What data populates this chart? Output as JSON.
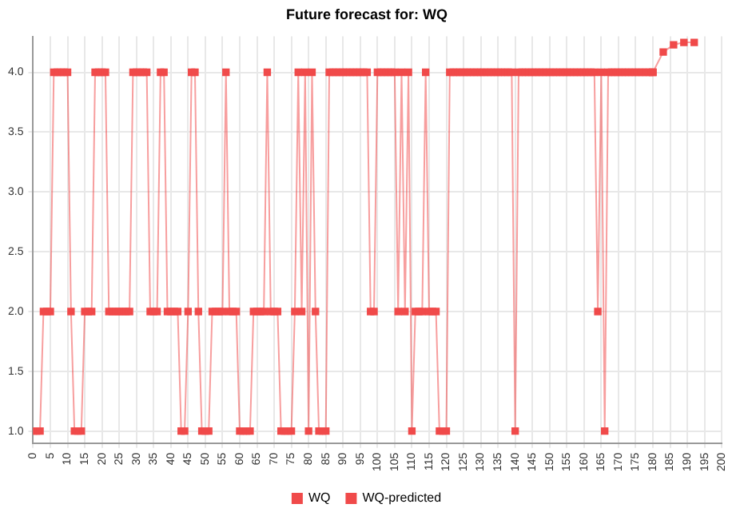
{
  "chart_data": {
    "type": "line",
    "title": "Future forecast for: WQ",
    "x": [
      0,
      1,
      2,
      3,
      4,
      5,
      6,
      7,
      8,
      9,
      10,
      11,
      12,
      13,
      14,
      15,
      16,
      17,
      18,
      19,
      20,
      21,
      22,
      23,
      24,
      25,
      26,
      27,
      28,
      29,
      30,
      31,
      32,
      33,
      34,
      35,
      36,
      37,
      38,
      39,
      40,
      41,
      42,
      43,
      44,
      45,
      46,
      47,
      48,
      49,
      50,
      51,
      52,
      53,
      54,
      55,
      56,
      57,
      58,
      59,
      60,
      61,
      62,
      63,
      64,
      65,
      66,
      67,
      68,
      69,
      70,
      71,
      72,
      73,
      74,
      75,
      76,
      77,
      78,
      79,
      80,
      81,
      82,
      83,
      84,
      85,
      86,
      87,
      88,
      89,
      90,
      91,
      92,
      93,
      94,
      95,
      96,
      97,
      98,
      99,
      100,
      101,
      102,
      103,
      104,
      105,
      106,
      107,
      108,
      109,
      110,
      111,
      112,
      113,
      114,
      115,
      116,
      117,
      118,
      119,
      120,
      121,
      122,
      123,
      124,
      125,
      126,
      127,
      128,
      129,
      130,
      131,
      132,
      133,
      134,
      135,
      136,
      137,
      138,
      139,
      140,
      141,
      142,
      143,
      144,
      145,
      146,
      147,
      148,
      149,
      150,
      151,
      152,
      153,
      154,
      155,
      156,
      157,
      158,
      159,
      160,
      161,
      162,
      163,
      164,
      165,
      166,
      167,
      168,
      169,
      170,
      171,
      172,
      173,
      174,
      175,
      176,
      177,
      178,
      179,
      180
    ],
    "series": [
      {
        "name": "WQ",
        "color": "#f04a4a",
        "values": [
          1,
          1,
          1,
          2,
          2,
          2,
          4,
          4,
          4,
          4,
          4,
          2,
          1,
          1,
          1,
          2,
          2,
          2,
          4,
          4,
          4,
          4,
          2,
          2,
          2,
          2,
          2,
          2,
          2,
          4,
          4,
          4,
          4,
          4,
          2,
          2,
          2,
          4,
          4,
          2,
          2,
          2,
          2,
          1,
          1,
          2,
          4,
          4,
          2,
          1,
          1,
          1,
          2,
          2,
          2,
          2,
          4,
          2,
          2,
          2,
          1,
          1,
          1,
          1,
          2,
          2,
          2,
          2,
          4,
          2,
          2,
          2,
          1,
          1,
          1,
          1,
          2,
          4,
          2,
          4,
          1,
          4,
          2,
          1,
          1,
          1,
          4,
          4,
          4,
          4,
          4,
          4,
          4,
          4,
          4,
          4,
          4,
          4,
          2,
          2,
          4,
          4,
          4,
          4,
          4,
          4,
          2,
          4,
          2,
          4,
          1,
          2,
          2,
          2,
          4,
          2,
          2,
          2,
          1,
          1,
          1,
          4,
          4,
          4,
          4,
          4,
          4,
          4,
          4,
          4,
          4,
          4,
          4,
          4,
          4,
          4,
          4,
          4,
          4,
          4,
          1,
          4,
          4,
          4,
          4,
          4,
          4,
          4,
          4,
          4,
          4,
          4,
          4,
          4,
          4,
          4,
          4,
          4,
          4,
          4,
          4,
          4,
          4,
          4,
          2,
          4,
          1,
          4,
          4,
          4,
          4,
          4,
          4,
          4,
          4,
          4,
          4,
          4,
          4,
          4,
          4
        ]
      },
      {
        "name": "WQ-predicted",
        "color": "#f04a4a",
        "x": [
          180,
          183,
          186,
          189,
          192
        ],
        "values": [
          4,
          4.17,
          4.23,
          4.25,
          4.25
        ]
      }
    ],
    "xlim": [
      0,
      200
    ],
    "xticks": [
      0,
      5,
      10,
      15,
      20,
      25,
      30,
      35,
      40,
      45,
      50,
      55,
      60,
      65,
      70,
      75,
      80,
      85,
      90,
      95,
      100,
      105,
      110,
      115,
      120,
      125,
      130,
      135,
      140,
      145,
      150,
      155,
      160,
      165,
      170,
      175,
      180,
      185,
      190,
      195,
      200
    ],
    "ylim": [
      0.9,
      4.3
    ],
    "yticks": [
      {
        "value": 1,
        "label": "1.0"
      },
      {
        "value": 1.5,
        "label": "1.5"
      },
      {
        "value": 2,
        "label": "2.0"
      },
      {
        "value": 2.5,
        "label": "2.5"
      },
      {
        "value": 3,
        "label": "3.0"
      },
      {
        "value": 3.5,
        "label": "3.5"
      },
      {
        "value": 4,
        "label": "4.0"
      }
    ],
    "grid": true,
    "legend": "bottom",
    "marker": "square",
    "line_style": "solid"
  }
}
